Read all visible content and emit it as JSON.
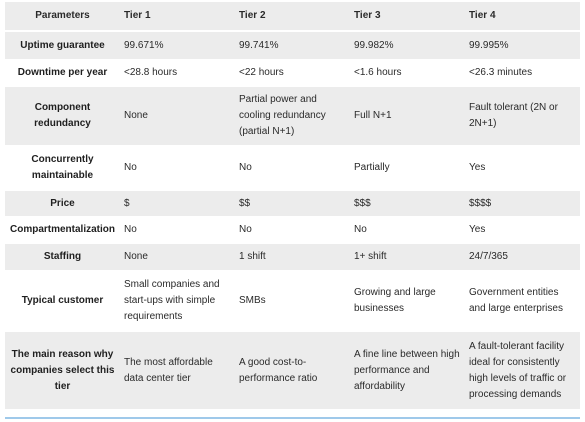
{
  "table": {
    "headers": [
      "Parameters",
      "Tier 1",
      "Tier 2",
      "Tier 3",
      "Tier 4"
    ],
    "rows": [
      {
        "param": "Uptime guarantee",
        "cells": [
          "99.671%",
          "99.741%",
          "99.982%",
          "99.995%"
        ]
      },
      {
        "param": "Downtime per year",
        "cells": [
          "<28.8 hours",
          "<22 hours",
          "<1.6 hours",
          "<26.3 minutes"
        ]
      },
      {
        "param": "Component redundancy",
        "cells": [
          "None",
          "Partial power and cooling redundancy (partial N+1)",
          "Full N+1",
          "Fault tolerant (2N or 2N+1)"
        ]
      },
      {
        "param": "Concurrently maintainable",
        "cells": [
          "No",
          "No",
          "Partially",
          "Yes"
        ]
      },
      {
        "param": "Price",
        "cells": [
          "$",
          "$$",
          "$$$",
          "$$$$"
        ]
      },
      {
        "param": "Compartmentalization",
        "cells": [
          "No",
          "No",
          "No",
          "Yes"
        ]
      },
      {
        "param": "Staffing",
        "cells": [
          "None",
          "1 shift",
          "1+ shift",
          "24/7/365"
        ]
      },
      {
        "param": "Typical customer",
        "cells": [
          "Small companies and start-ups with simple requirements",
          "SMBs",
          "Growing and large businesses",
          "Government entities and large enterprises"
        ]
      },
      {
        "param": "The main reason why companies select this tier",
        "cells": [
          "The most affordable data center tier",
          "A good cost-to-performance ratio",
          "A fine line between high performance and affordability",
          "A fault-tolerant facility ideal for consistently high levels of traffic or processing demands"
        ]
      }
    ]
  }
}
